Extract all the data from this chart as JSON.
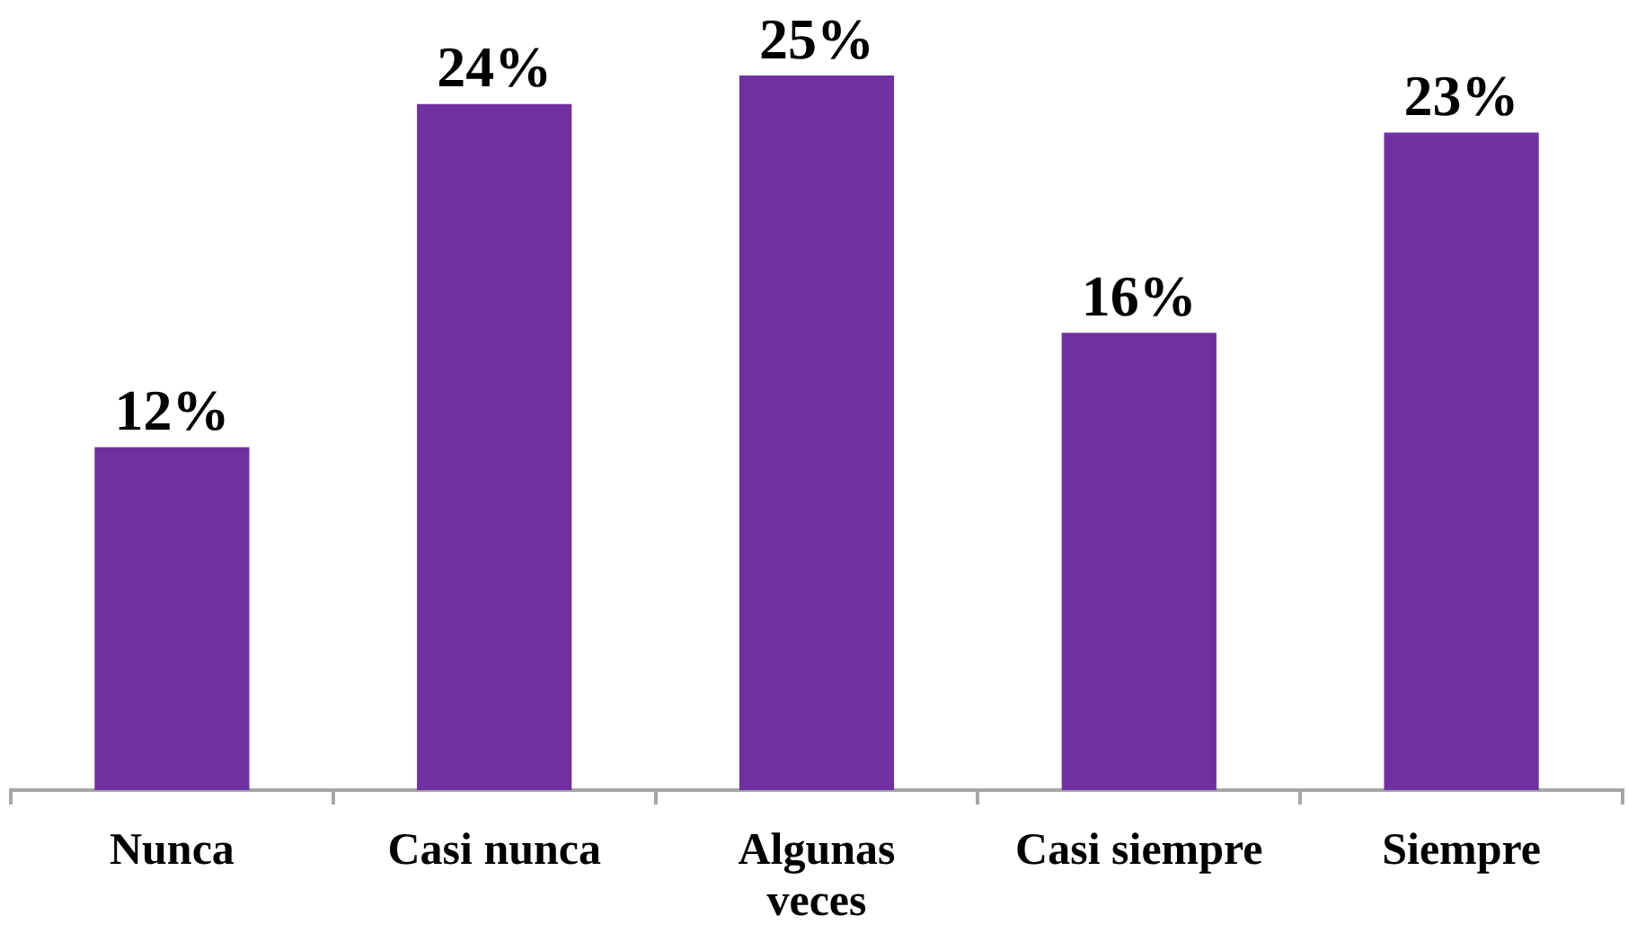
{
  "chart_data": {
    "type": "bar",
    "categories": [
      "Nunca",
      "Casi nunca",
      "Algunas veces",
      "Casi siempre",
      "Siempre"
    ],
    "values": [
      12,
      24,
      25,
      16,
      23
    ],
    "value_labels": [
      "12%",
      "24%",
      "25%",
      "16%",
      "23%"
    ],
    "color": "#7030a0"
  }
}
